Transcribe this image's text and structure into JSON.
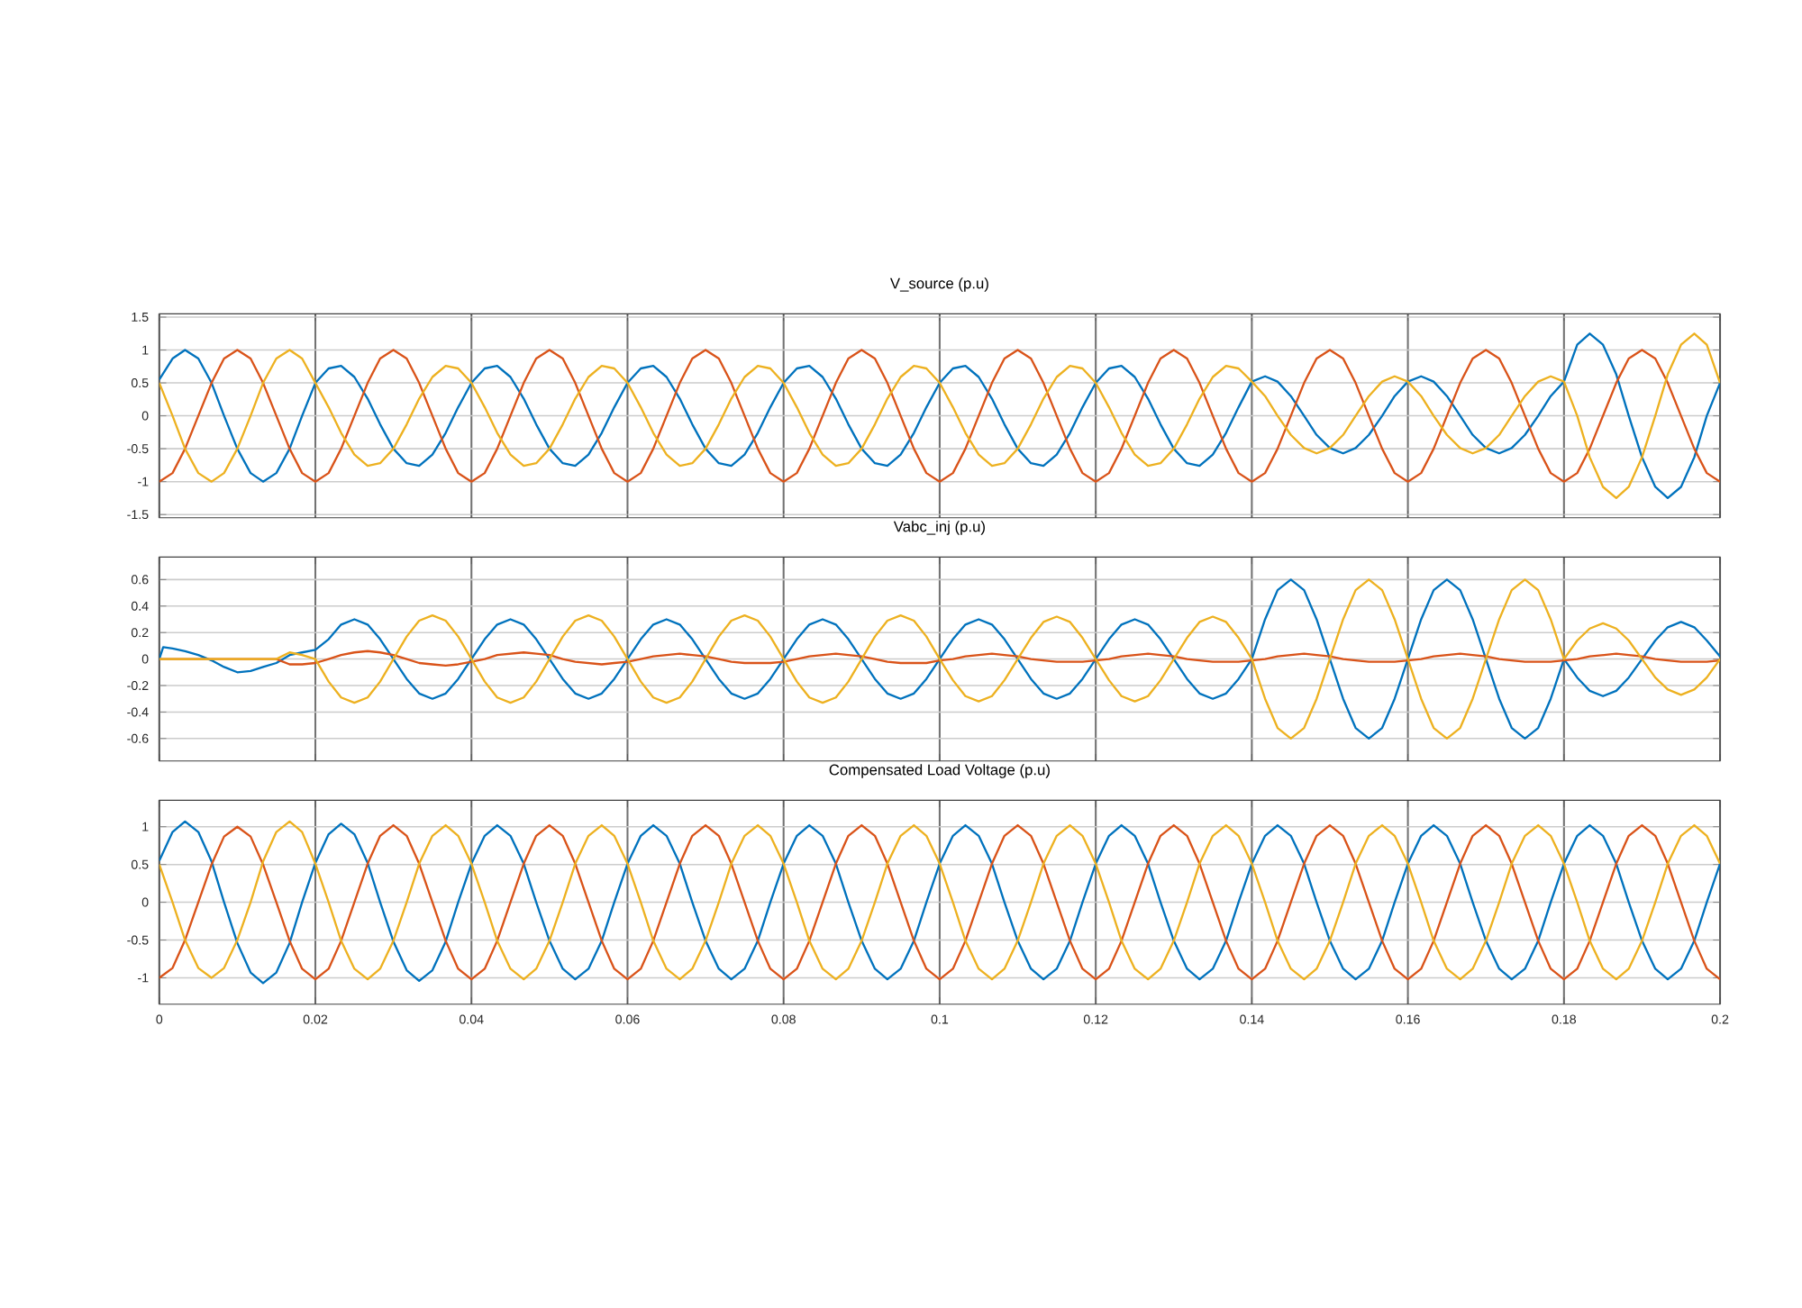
{
  "chart_data": [
    {
      "type": "line",
      "title": "V_source (p.u)",
      "x": [
        0,
        0.0017,
        0.0033,
        0.005,
        0.0067,
        0.0083,
        0.01,
        0.0117,
        0.0133,
        0.015,
        0.0167,
        0.0183,
        0.02,
        0.0217,
        0.0233,
        0.025,
        0.0267,
        0.0283,
        0.03,
        0.0317,
        0.0333,
        0.035,
        0.0367,
        0.0383,
        0.04,
        0.0417,
        0.0433,
        0.045,
        0.0467,
        0.0483,
        0.05,
        0.0517,
        0.0533,
        0.055,
        0.0567,
        0.0583,
        0.06,
        0.0617,
        0.0633,
        0.065,
        0.0667,
        0.0683,
        0.07,
        0.0717,
        0.0733,
        0.075,
        0.0767,
        0.0783,
        0.08,
        0.0817,
        0.0833,
        0.085,
        0.0867,
        0.0883,
        0.09,
        0.0917,
        0.0933,
        0.095,
        0.0967,
        0.0983,
        0.1,
        0.1017,
        0.1033,
        0.105,
        0.1067,
        0.1083,
        0.11,
        0.1117,
        0.1133,
        0.115,
        0.1167,
        0.1183,
        0.12,
        0.1217,
        0.1233,
        0.125,
        0.1267,
        0.1283,
        0.13,
        0.1317,
        0.1333,
        0.135,
        0.1367,
        0.1383,
        0.14,
        0.1417,
        0.1433,
        0.145,
        0.1467,
        0.1483,
        0.15,
        0.1517,
        0.1533,
        0.155,
        0.1567,
        0.1583,
        0.16,
        0.1617,
        0.1633,
        0.165,
        0.1667,
        0.1683,
        0.17,
        0.1717,
        0.1733,
        0.175,
        0.1767,
        0.1783,
        0.18,
        0.1817,
        0.1833,
        0.185,
        0.1867,
        0.1883,
        0.19,
        0.1917,
        0.1933,
        0.195,
        0.1967,
        0.1983,
        0.2
      ],
      "series": [
        {
          "color": "#0072bd",
          "values": [
            0.55,
            0.87,
            1,
            0.87,
            0.5,
            0,
            -0.5,
            -0.87,
            -1,
            -0.87,
            -0.5,
            0,
            0.5,
            0.72,
            0.76,
            0.59,
            0.26,
            -0.13,
            -0.5,
            -0.72,
            -0.76,
            -0.59,
            -0.26,
            0.13,
            0.5,
            0.72,
            0.76,
            0.59,
            0.26,
            -0.13,
            -0.5,
            -0.72,
            -0.76,
            -0.59,
            -0.26,
            0.13,
            0.5,
            0.72,
            0.76,
            0.59,
            0.26,
            -0.13,
            -0.5,
            -0.72,
            -0.76,
            -0.59,
            -0.26,
            0.13,
            0.5,
            0.72,
            0.76,
            0.59,
            0.26,
            -0.13,
            -0.5,
            -0.72,
            -0.76,
            -0.59,
            -0.26,
            0.13,
            0.5,
            0.72,
            0.76,
            0.59,
            0.26,
            -0.13,
            -0.5,
            -0.72,
            -0.76,
            -0.59,
            -0.26,
            0.13,
            0.5,
            0.72,
            0.76,
            0.59,
            0.26,
            -0.13,
            -0.5,
            -0.72,
            -0.76,
            -0.59,
            -0.26,
            0.13,
            0.52,
            0.6,
            0.52,
            0.3,
            0,
            -0.29,
            -0.49,
            -0.57,
            -0.49,
            -0.29,
            0,
            0.3,
            0.52,
            0.6,
            0.52,
            0.3,
            0,
            -0.29,
            -0.49,
            -0.57,
            -0.49,
            -0.29,
            0,
            0.3,
            0.52,
            1.08,
            1.25,
            1.08,
            0.63,
            0,
            -0.63,
            -1.08,
            -1.25,
            -1.08,
            -0.63,
            0,
            0.5
          ]
        },
        {
          "color": "#d95319",
          "values": [
            -1,
            -0.87,
            -0.5,
            0,
            0.5,
            0.87,
            1,
            0.87,
            0.5,
            0,
            -0.5,
            -0.87,
            -1,
            -0.87,
            -0.5,
            0,
            0.5,
            0.87,
            1,
            0.87,
            0.5,
            0,
            -0.5,
            -0.87,
            -1,
            -0.87,
            -0.5,
            0,
            0.5,
            0.87,
            1,
            0.87,
            0.5,
            0,
            -0.5,
            -0.87,
            -1,
            -0.87,
            -0.5,
            0,
            0.5,
            0.87,
            1,
            0.87,
            0.5,
            0,
            -0.5,
            -0.87,
            -1,
            -0.87,
            -0.5,
            0,
            0.5,
            0.87,
            1,
            0.87,
            0.5,
            0,
            -0.5,
            -0.87,
            -1,
            -0.87,
            -0.5,
            0,
            0.5,
            0.87,
            1,
            0.87,
            0.5,
            0,
            -0.5,
            -0.87,
            -1,
            -0.87,
            -0.5,
            0,
            0.5,
            0.87,
            1,
            0.87,
            0.5,
            0,
            -0.5,
            -0.87,
            -1,
            -0.87,
            -0.5,
            0,
            0.5,
            0.87,
            1,
            0.87,
            0.5,
            0,
            -0.5,
            -0.87,
            -1,
            -0.87,
            -0.5,
            0,
            0.5,
            0.87,
            1,
            0.87,
            0.5,
            0,
            -0.5,
            -0.87,
            -1,
            -0.87,
            -0.5,
            0,
            0.5,
            0.87,
            1,
            0.87,
            0.5,
            0,
            -0.5,
            -0.87,
            -1
          ]
        },
        {
          "color": "#edb120",
          "values": [
            0.5,
            0,
            -0.5,
            -0.87,
            -1,
            -0.87,
            -0.5,
            0,
            0.5,
            0.87,
            1,
            0.87,
            0.5,
            0.13,
            -0.26,
            -0.59,
            -0.76,
            -0.72,
            -0.5,
            -0.13,
            0.26,
            0.59,
            0.76,
            0.72,
            0.5,
            0.13,
            -0.26,
            -0.59,
            -0.76,
            -0.72,
            -0.5,
            -0.13,
            0.26,
            0.59,
            0.76,
            0.72,
            0.5,
            0.13,
            -0.26,
            -0.59,
            -0.76,
            -0.72,
            -0.5,
            -0.13,
            0.26,
            0.59,
            0.76,
            0.72,
            0.5,
            0.13,
            -0.26,
            -0.59,
            -0.76,
            -0.72,
            -0.5,
            -0.13,
            0.26,
            0.59,
            0.76,
            0.72,
            0.5,
            0.13,
            -0.26,
            -0.59,
            -0.76,
            -0.72,
            -0.5,
            -0.13,
            0.26,
            0.59,
            0.76,
            0.72,
            0.5,
            0.13,
            -0.26,
            -0.59,
            -0.76,
            -0.72,
            -0.5,
            -0.13,
            0.26,
            0.59,
            0.76,
            0.72,
            0.52,
            0.3,
            0,
            -0.29,
            -0.49,
            -0.57,
            -0.49,
            -0.29,
            0,
            0.3,
            0.52,
            0.6,
            0.52,
            0.3,
            0,
            -0.29,
            -0.49,
            -0.57,
            -0.49,
            -0.29,
            0,
            0.3,
            0.52,
            0.6,
            0.52,
            0,
            -0.63,
            -1.08,
            -1.25,
            -1.08,
            -0.63,
            0,
            0.63,
            1.08,
            1.25,
            1.08,
            0.5
          ]
        }
      ],
      "xlim": [
        0,
        0.2
      ],
      "ylim": [
        -1.55,
        1.55
      ],
      "xticks": [
        0,
        0.02,
        0.04,
        0.06,
        0.08,
        0.1,
        0.12,
        0.14,
        0.16,
        0.18,
        0.2
      ],
      "yticks": [
        -1.5,
        -1,
        -0.5,
        0,
        0.5,
        1,
        1.5
      ],
      "grid": true,
      "tick_labels": "y"
    },
    {
      "type": "line",
      "title": "Vabc_inj (p.u)",
      "x": [
        0,
        0.0005,
        0.0017,
        0.0033,
        0.005,
        0.0067,
        0.0083,
        0.01,
        0.0117,
        0.0133,
        0.015,
        0.0167,
        0.0183,
        0.02,
        0.0217,
        0.0233,
        0.025,
        0.0267,
        0.0283,
        0.03,
        0.0317,
        0.0333,
        0.035,
        0.0367,
        0.0383,
        0.04,
        0.0417,
        0.0433,
        0.045,
        0.0467,
        0.0483,
        0.05,
        0.0517,
        0.0533,
        0.055,
        0.0567,
        0.0583,
        0.06,
        0.0617,
        0.0633,
        0.065,
        0.0667,
        0.0683,
        0.07,
        0.0717,
        0.0733,
        0.075,
        0.0767,
        0.0783,
        0.08,
        0.0817,
        0.0833,
        0.085,
        0.0867,
        0.0883,
        0.09,
        0.0917,
        0.0933,
        0.095,
        0.0967,
        0.0983,
        0.1,
        0.1017,
        0.1033,
        0.105,
        0.1067,
        0.1083,
        0.11,
        0.1117,
        0.1133,
        0.115,
        0.1167,
        0.1183,
        0.12,
        0.1217,
        0.1233,
        0.125,
        0.1267,
        0.1283,
        0.13,
        0.1317,
        0.1333,
        0.135,
        0.1367,
        0.1383,
        0.14,
        0.1417,
        0.1433,
        0.145,
        0.1467,
        0.1483,
        0.15,
        0.1517,
        0.1533,
        0.155,
        0.1567,
        0.1583,
        0.16,
        0.1617,
        0.1633,
        0.165,
        0.1667,
        0.1683,
        0.17,
        0.1717,
        0.1733,
        0.175,
        0.1767,
        0.1783,
        0.18,
        0.1817,
        0.1833,
        0.185,
        0.1867,
        0.1883,
        0.19,
        0.1917,
        0.1933,
        0.195,
        0.1967,
        0.1983,
        0.2
      ],
      "series": [
        {
          "color": "#0072bd",
          "values": [
            0,
            0.09,
            0.08,
            0.06,
            0.03,
            -0.01,
            -0.06,
            -0.1,
            -0.09,
            -0.06,
            -0.03,
            0.03,
            0.05,
            0.07,
            0.15,
            0.26,
            0.3,
            0.26,
            0.15,
            0,
            -0.15,
            -0.26,
            -0.3,
            -0.26,
            -0.15,
            0,
            0.15,
            0.26,
            0.3,
            0.26,
            0.15,
            0,
            -0.15,
            -0.26,
            -0.3,
            -0.26,
            -0.15,
            0,
            0.15,
            0.26,
            0.3,
            0.26,
            0.15,
            0,
            -0.15,
            -0.26,
            -0.3,
            -0.26,
            -0.15,
            0,
            0.15,
            0.26,
            0.3,
            0.26,
            0.15,
            0,
            -0.15,
            -0.26,
            -0.3,
            -0.26,
            -0.15,
            0,
            0.15,
            0.26,
            0.3,
            0.26,
            0.15,
            0,
            -0.15,
            -0.26,
            -0.3,
            -0.26,
            -0.15,
            0,
            0.15,
            0.26,
            0.3,
            0.26,
            0.15,
            0,
            -0.15,
            -0.26,
            -0.3,
            -0.26,
            -0.15,
            0,
            0.3,
            0.52,
            0.6,
            0.52,
            0.3,
            0,
            -0.3,
            -0.52,
            -0.6,
            -0.52,
            -0.3,
            0,
            0.3,
            0.52,
            0.6,
            0.52,
            0.3,
            0,
            -0.3,
            -0.52,
            -0.6,
            -0.52,
            -0.3,
            0,
            -0.14,
            -0.24,
            -0.28,
            -0.24,
            -0.14,
            0,
            0.14,
            0.24,
            0.28,
            0.24,
            0.14,
            0.02
          ]
        },
        {
          "color": "#d95319",
          "values": [
            0,
            0,
            0,
            0,
            0,
            0,
            0,
            0,
            0,
            0,
            0,
            -0.04,
            -0.04,
            -0.03,
            0,
            0.03,
            0.05,
            0.06,
            0.05,
            0.03,
            0,
            -0.03,
            -0.04,
            -0.05,
            -0.04,
            -0.02,
            0,
            0.03,
            0.04,
            0.05,
            0.04,
            0.03,
            0,
            -0.02,
            -0.03,
            -0.04,
            -0.03,
            -0.02,
            0,
            0.02,
            0.03,
            0.04,
            0.03,
            0.02,
            0,
            -0.02,
            -0.03,
            -0.03,
            -0.03,
            -0.02,
            0,
            0.02,
            0.03,
            0.04,
            0.03,
            0.02,
            0,
            -0.02,
            -0.03,
            -0.03,
            -0.03,
            -0.01,
            0,
            0.02,
            0.03,
            0.04,
            0.03,
            0.02,
            0,
            -0.01,
            -0.02,
            -0.02,
            -0.02,
            -0.01,
            0,
            0.02,
            0.03,
            0.04,
            0.03,
            0.02,
            0,
            -0.01,
            -0.02,
            -0.02,
            -0.02,
            -0.01,
            0,
            0.02,
            0.03,
            0.04,
            0.03,
            0.02,
            0,
            -0.01,
            -0.02,
            -0.02,
            -0.02,
            -0.01,
            0,
            0.02,
            0.03,
            0.04,
            0.03,
            0.02,
            0,
            -0.01,
            -0.02,
            -0.02,
            -0.02,
            -0.01,
            0,
            0.02,
            0.03,
            0.04,
            0.03,
            0.02,
            0,
            -0.01,
            -0.02,
            -0.02,
            -0.02,
            -0.01
          ]
        },
        {
          "color": "#edb120",
          "values": [
            0,
            0,
            0,
            0,
            0,
            0,
            0,
            0,
            0,
            0,
            0,
            0.05,
            0.03,
            0,
            -0.17,
            -0.29,
            -0.33,
            -0.29,
            -0.17,
            0,
            0.17,
            0.29,
            0.33,
            0.29,
            0.17,
            0,
            -0.17,
            -0.29,
            -0.33,
            -0.29,
            -0.17,
            0,
            0.17,
            0.29,
            0.33,
            0.29,
            0.17,
            0,
            -0.17,
            -0.29,
            -0.33,
            -0.29,
            -0.17,
            0,
            0.17,
            0.29,
            0.33,
            0.29,
            0.17,
            0,
            -0.17,
            -0.29,
            -0.33,
            -0.29,
            -0.17,
            0,
            0.17,
            0.29,
            0.33,
            0.29,
            0.17,
            0,
            -0.16,
            -0.28,
            -0.32,
            -0.28,
            -0.16,
            0,
            0.16,
            0.28,
            0.32,
            0.28,
            0.16,
            0,
            -0.16,
            -0.28,
            -0.32,
            -0.28,
            -0.16,
            0,
            0.16,
            0.28,
            0.32,
            0.28,
            0.16,
            0,
            -0.3,
            -0.52,
            -0.6,
            -0.52,
            -0.3,
            0,
            0.3,
            0.52,
            0.6,
            0.52,
            0.3,
            0,
            -0.3,
            -0.52,
            -0.6,
            -0.52,
            -0.3,
            0,
            0.3,
            0.52,
            0.6,
            0.52,
            0.3,
            0,
            0.14,
            0.23,
            0.27,
            0.23,
            0.14,
            0,
            -0.14,
            -0.23,
            -0.27,
            -0.23,
            -0.14,
            0
          ]
        }
      ],
      "xlim": [
        0,
        0.2
      ],
      "ylim": [
        -0.77,
        0.77
      ],
      "xticks": [
        0,
        0.02,
        0.04,
        0.06,
        0.08,
        0.1,
        0.12,
        0.14,
        0.16,
        0.18,
        0.2
      ],
      "yticks": [
        -0.6,
        -0.4,
        -0.2,
        0,
        0.2,
        0.4,
        0.6
      ],
      "grid": true,
      "tick_labels": "y"
    },
    {
      "type": "line",
      "title": "Compensated Load Voltage (p.u)",
      "x": [
        0,
        0.0017,
        0.0033,
        0.005,
        0.0067,
        0.0083,
        0.01,
        0.0117,
        0.0133,
        0.015,
        0.0167,
        0.0183,
        0.02,
        0.0217,
        0.0233,
        0.025,
        0.0267,
        0.0283,
        0.03,
        0.0317,
        0.0333,
        0.035,
        0.0367,
        0.0383,
        0.04,
        0.0417,
        0.0433,
        0.045,
        0.0467,
        0.0483,
        0.05,
        0.0517,
        0.0533,
        0.055,
        0.0567,
        0.0583,
        0.06,
        0.0617,
        0.0633,
        0.065,
        0.0667,
        0.0683,
        0.07,
        0.0717,
        0.0733,
        0.075,
        0.0767,
        0.0783,
        0.08,
        0.0817,
        0.0833,
        0.085,
        0.0867,
        0.0883,
        0.09,
        0.0917,
        0.0933,
        0.095,
        0.0967,
        0.0983,
        0.1,
        0.1017,
        0.1033,
        0.105,
        0.1067,
        0.1083,
        0.11,
        0.1117,
        0.1133,
        0.115,
        0.1167,
        0.1183,
        0.12,
        0.1217,
        0.1233,
        0.125,
        0.1267,
        0.1283,
        0.13,
        0.1317,
        0.1333,
        0.135,
        0.1367,
        0.1383,
        0.14,
        0.1417,
        0.1433,
        0.145,
        0.1467,
        0.1483,
        0.15,
        0.1517,
        0.1533,
        0.155,
        0.1567,
        0.1583,
        0.16,
        0.1617,
        0.1633,
        0.165,
        0.1667,
        0.1683,
        0.17,
        0.1717,
        0.1733,
        0.175,
        0.1767,
        0.1783,
        0.18,
        0.1817,
        0.1833,
        0.185,
        0.1867,
        0.1883,
        0.19,
        0.1917,
        0.1933,
        0.195,
        0.1967,
        0.1983,
        0.2
      ],
      "series": [
        {
          "color": "#0072bd",
          "values": [
            0.55,
            0.93,
            1.07,
            0.93,
            0.54,
            0,
            -0.54,
            -0.93,
            -1.07,
            -0.93,
            -0.54,
            0,
            0.52,
            0.9,
            1.04,
            0.9,
            0.52,
            0,
            -0.52,
            -0.9,
            -1.04,
            -0.9,
            -0.52,
            0,
            0.51,
            0.88,
            1.02,
            0.88,
            0.51,
            0,
            -0.51,
            -0.88,
            -1.02,
            -0.88,
            -0.51,
            0,
            0.51,
            0.88,
            1.02,
            0.88,
            0.51,
            0,
            -0.51,
            -0.88,
            -1.02,
            -0.88,
            -0.51,
            0,
            0.51,
            0.88,
            1.02,
            0.88,
            0.51,
            0,
            -0.51,
            -0.88,
            -1.02,
            -0.88,
            -0.51,
            0,
            0.51,
            0.88,
            1.02,
            0.88,
            0.51,
            0,
            -0.51,
            -0.88,
            -1.02,
            -0.88,
            -0.51,
            0,
            0.51,
            0.88,
            1.02,
            0.88,
            0.51,
            0,
            -0.51,
            -0.88,
            -1.02,
            -0.88,
            -0.51,
            0,
            0.51,
            0.88,
            1.02,
            0.88,
            0.51,
            0,
            -0.51,
            -0.88,
            -1.02,
            -0.88,
            -0.51,
            0,
            0.51,
            0.88,
            1.02,
            0.88,
            0.51,
            0,
            -0.51,
            -0.88,
            -1.02,
            -0.88,
            -0.51,
            0,
            0.51,
            0.88,
            1.02,
            0.88,
            0.51,
            0,
            -0.51,
            -0.88,
            -1.02,
            -0.88,
            -0.51,
            0,
            0.51
          ]
        },
        {
          "color": "#d95319",
          "values": [
            -1,
            -0.87,
            -0.5,
            0,
            0.5,
            0.87,
            1,
            0.87,
            0.5,
            0,
            -0.51,
            -0.88,
            -1.02,
            -0.88,
            -0.51,
            0,
            0.51,
            0.88,
            1.02,
            0.88,
            0.51,
            0,
            -0.51,
            -0.88,
            -1.02,
            -0.88,
            -0.51,
            0,
            0.51,
            0.88,
            1.02,
            0.88,
            0.51,
            0,
            -0.51,
            -0.88,
            -1.02,
            -0.88,
            -0.51,
            0,
            0.51,
            0.88,
            1.02,
            0.88,
            0.51,
            0,
            -0.51,
            -0.88,
            -1.02,
            -0.88,
            -0.51,
            0,
            0.51,
            0.88,
            1.02,
            0.88,
            0.51,
            0,
            -0.51,
            -0.88,
            -1.02,
            -0.88,
            -0.51,
            0,
            0.51,
            0.88,
            1.02,
            0.88,
            0.51,
            0,
            -0.51,
            -0.88,
            -1.02,
            -0.88,
            -0.51,
            0,
            0.51,
            0.88,
            1.02,
            0.88,
            0.51,
            0,
            -0.51,
            -0.88,
            -1.02,
            -0.88,
            -0.51,
            0,
            0.51,
            0.88,
            1.02,
            0.88,
            0.51,
            0,
            -0.51,
            -0.88,
            -1.02,
            -0.88,
            -0.51,
            0,
            0.51,
            0.88,
            1.02,
            0.88,
            0.51,
            0,
            -0.51,
            -0.88,
            -1.02,
            -0.88,
            -0.51,
            0,
            0.51,
            0.88,
            1.02,
            0.88,
            0.51,
            0,
            -0.51,
            -0.88,
            -1.02
          ]
        },
        {
          "color": "#edb120",
          "values": [
            0.5,
            0,
            -0.5,
            -0.87,
            -1,
            -0.87,
            -0.5,
            0,
            0.54,
            0.93,
            1.07,
            0.93,
            0.51,
            0,
            -0.51,
            -0.88,
            -1.02,
            -0.88,
            -0.51,
            0,
            0.51,
            0.88,
            1.02,
            0.88,
            0.51,
            0,
            -0.51,
            -0.88,
            -1.02,
            -0.88,
            -0.51,
            0,
            0.51,
            0.88,
            1.02,
            0.88,
            0.51,
            0,
            -0.51,
            -0.88,
            -1.02,
            -0.88,
            -0.51,
            0,
            0.51,
            0.88,
            1.02,
            0.88,
            0.51,
            0,
            -0.51,
            -0.88,
            -1.02,
            -0.88,
            -0.51,
            0,
            0.51,
            0.88,
            1.02,
            0.88,
            0.51,
            0,
            -0.51,
            -0.88,
            -1.02,
            -0.88,
            -0.51,
            0,
            0.51,
            0.88,
            1.02,
            0.88,
            0.51,
            0,
            -0.51,
            -0.88,
            -1.02,
            -0.88,
            -0.51,
            0,
            0.51,
            0.88,
            1.02,
            0.88,
            0.51,
            0,
            -0.51,
            -0.88,
            -1.02,
            -0.88,
            -0.51,
            0,
            0.51,
            0.88,
            1.02,
            0.88,
            0.51,
            0,
            -0.51,
            -0.88,
            -1.02,
            -0.88,
            -0.51,
            0,
            0.51,
            0.88,
            1.02,
            0.88,
            0.51,
            0,
            -0.51,
            -0.88,
            -1.02,
            -0.88,
            -0.51,
            0,
            0.51,
            0.88,
            1.02,
            0.88,
            0.51
          ]
        }
      ],
      "xlim": [
        0,
        0.2
      ],
      "ylim": [
        -1.35,
        1.35
      ],
      "xticks": [
        0,
        0.02,
        0.04,
        0.06,
        0.08,
        0.1,
        0.12,
        0.14,
        0.16,
        0.18,
        0.2
      ],
      "yticks": [
        -1,
        -0.5,
        0,
        0.5,
        1
      ],
      "grid": true
    }
  ]
}
